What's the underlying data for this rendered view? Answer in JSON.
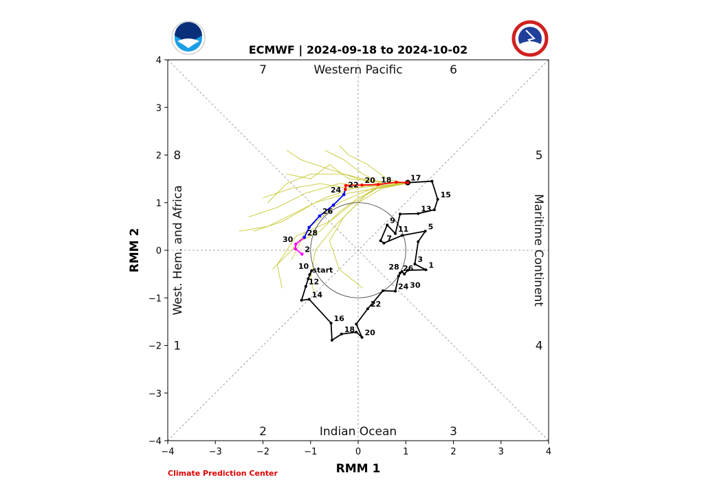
{
  "chart_data": {
    "type": "line",
    "title": "ECMWF | 2024-09-18 to 2024-10-02",
    "xlabel": "RMM 1",
    "ylabel": "RMM 2",
    "xlim": [
      -4,
      4
    ],
    "ylim": [
      -4,
      4
    ],
    "xticks": [
      "−4",
      "−3",
      "−2",
      "−1",
      "0",
      "1",
      "2",
      "3",
      "4"
    ],
    "yticks": [
      "−4",
      "−3",
      "−2",
      "−1",
      "0",
      "1",
      "2",
      "3",
      "4"
    ],
    "phases": [
      {
        "label": "1",
        "x": -3.8,
        "y": -2
      },
      {
        "label": "2",
        "x": -2,
        "y": -3.8
      },
      {
        "label": "3",
        "x": 2,
        "y": -3.8
      },
      {
        "label": "4",
        "x": 3.8,
        "y": -2
      },
      {
        "label": "5",
        "x": 3.8,
        "y": 2
      },
      {
        "label": "6",
        "x": 2,
        "y": 3.8
      },
      {
        "label": "7",
        "x": -2,
        "y": 3.8
      },
      {
        "label": "8",
        "x": -3.8,
        "y": 2
      }
    ],
    "regions": {
      "top": "Western Pacific",
      "bottom": "Indian Ocean",
      "left": "West. Hem. and Africa",
      "right": "Maritime Continent"
    },
    "unit_circle_radius": 1,
    "colors": {
      "observed": "#000000",
      "forecast_week1": "#ff0000",
      "forecast_week2": "#0000ff",
      "forecast_week3": "#ff00ff",
      "ensemble": "#c8c832"
    },
    "observed": [
      {
        "x": -1.02,
        "y": -0.51,
        "label": "start"
      },
      {
        "x": -0.98,
        "y": -0.43,
        "label": "10"
      },
      {
        "x": -1.05,
        "y": -0.6,
        "label": ""
      },
      {
        "x": -1.1,
        "y": -0.76,
        "label": "12"
      },
      {
        "x": -1.19,
        "y": -1.05,
        "label": ""
      },
      {
        "x": -1.03,
        "y": -1.03,
        "label": "14"
      },
      {
        "x": -0.57,
        "y": -1.53,
        "label": "16"
      },
      {
        "x": -0.55,
        "y": -1.89,
        "label": ""
      },
      {
        "x": -0.35,
        "y": -1.76,
        "label": "18"
      },
      {
        "x": -0.04,
        "y": -1.72,
        "label": ""
      },
      {
        "x": 0.08,
        "y": -1.83,
        "label": "20"
      },
      {
        "x": -0.04,
        "y": -1.55,
        "label": ""
      },
      {
        "x": 0.2,
        "y": -1.23,
        "label": "22"
      },
      {
        "x": 0.52,
        "y": -0.85,
        "label": ""
      },
      {
        "x": 0.78,
        "y": -0.86,
        "label": "24"
      },
      {
        "x": 0.85,
        "y": -0.54,
        "label": ""
      },
      {
        "x": 0.88,
        "y": -0.48,
        "label": "26"
      },
      {
        "x": 0.92,
        "y": -0.45,
        "label": "28"
      },
      {
        "x": 0.97,
        "y": -0.5,
        "label": "30"
      },
      {
        "x": 1.04,
        "y": -0.42,
        "label": ""
      },
      {
        "x": 1.42,
        "y": -0.41,
        "label": "1"
      },
      {
        "x": 1.19,
        "y": -0.29,
        "label": "3"
      },
      {
        "x": 1.26,
        "y": 0.18,
        "label": ""
      },
      {
        "x": 1.41,
        "y": 0.4,
        "label": "5"
      },
      {
        "x": 0.92,
        "y": 0.31,
        "label": ""
      },
      {
        "x": 0.54,
        "y": 0.15,
        "label": "7"
      },
      {
        "x": 0.47,
        "y": 0.2,
        "label": ""
      },
      {
        "x": 0.61,
        "y": 0.53,
        "label": "9"
      },
      {
        "x": 0.78,
        "y": 0.35,
        "label": "11"
      },
      {
        "x": 0.88,
        "y": 0.76,
        "label": ""
      },
      {
        "x": 1.26,
        "y": 0.77,
        "label": "13"
      },
      {
        "x": 1.6,
        "y": 0.85,
        "label": ""
      },
      {
        "x": 1.67,
        "y": 1.07,
        "label": "15"
      },
      {
        "x": 1.55,
        "y": 1.45,
        "label": ""
      },
      {
        "x": 1.04,
        "y": 1.42,
        "label": "17"
      }
    ],
    "forecast": [
      {
        "x": 1.04,
        "y": 1.42,
        "label": "",
        "week": 1
      },
      {
        "x": 0.8,
        "y": 1.43,
        "label": "",
        "week": 1
      },
      {
        "x": 0.42,
        "y": 1.38,
        "label": "18",
        "week": 1
      },
      {
        "x": 0.08,
        "y": 1.37,
        "label": "20",
        "week": 1
      },
      {
        "x": -0.26,
        "y": 1.36,
        "label": "",
        "week": 1
      },
      {
        "x": -0.27,
        "y": 1.28,
        "label": "22",
        "week": 1
      },
      {
        "x": -0.3,
        "y": 1.17,
        "label": "24",
        "week": 2
      },
      {
        "x": -0.52,
        "y": 0.95,
        "label": "",
        "week": 2
      },
      {
        "x": -0.81,
        "y": 0.72,
        "label": "26",
        "week": 2
      },
      {
        "x": -1.03,
        "y": 0.48,
        "label": "",
        "week": 2
      },
      {
        "x": -1.13,
        "y": 0.27,
        "label": "28",
        "week": 2
      },
      {
        "x": -1.31,
        "y": 0.13,
        "label": "30",
        "week": 3
      },
      {
        "x": -1.32,
        "y": 0.03,
        "label": "",
        "week": 3
      },
      {
        "x": -1.18,
        "y": -0.08,
        "label": "2",
        "week": 3
      }
    ],
    "ensemble": [
      [
        [
          1.0,
          1.4
        ],
        [
          0.4,
          1.4
        ],
        [
          0,
          1.5
        ],
        [
          -0.6,
          1.7
        ],
        [
          -1.2,
          1.9
        ],
        [
          -1.5,
          2.1
        ]
      ],
      [
        [
          1.0,
          1.4
        ],
        [
          0.4,
          1.3
        ],
        [
          -0.2,
          1.2
        ],
        [
          -0.9,
          1.0
        ],
        [
          -1.6,
          0.6
        ],
        [
          -2.2,
          0.4
        ]
      ],
      [
        [
          1.0,
          1.4
        ],
        [
          0.5,
          1.4
        ],
        [
          0.1,
          1.6
        ],
        [
          -0.3,
          1.9
        ],
        [
          -0.7,
          2.1
        ]
      ],
      [
        [
          1.0,
          1.4
        ],
        [
          0.3,
          1.3
        ],
        [
          -0.4,
          1.0
        ],
        [
          -1.0,
          0.5
        ],
        [
          -1.4,
          0.0
        ],
        [
          -1.8,
          -0.4
        ]
      ],
      [
        [
          1.0,
          1.4
        ],
        [
          0.4,
          1.35
        ],
        [
          -0.2,
          1.3
        ],
        [
          -0.8,
          1.4
        ],
        [
          -1.4,
          1.3
        ],
        [
          -2.0,
          1.1
        ]
      ],
      [
        [
          1.0,
          1.4
        ],
        [
          0.5,
          1.3
        ],
        [
          0.0,
          1.0
        ],
        [
          -0.5,
          0.5
        ],
        [
          -0.9,
          0.0
        ],
        [
          -1.0,
          -0.6
        ],
        [
          -0.9,
          -1.0
        ]
      ],
      [
        [
          1.0,
          1.4
        ],
        [
          0.3,
          1.45
        ],
        [
          -0.3,
          1.6
        ],
        [
          -1.0,
          1.6
        ],
        [
          -1.5,
          1.4
        ],
        [
          -1.9,
          1.0
        ]
      ],
      [
        [
          1.0,
          1.4
        ],
        [
          0.5,
          1.4
        ],
        [
          0.2,
          1.2
        ],
        [
          -0.3,
          0.7
        ],
        [
          -0.6,
          0.2
        ],
        [
          -0.4,
          -0.4
        ],
        [
          0.1,
          -0.8
        ]
      ],
      [
        [
          1.0,
          1.4
        ],
        [
          0.4,
          1.4
        ],
        [
          -0.1,
          1.3
        ],
        [
          -0.7,
          1.1
        ],
        [
          -1.3,
          0.8
        ],
        [
          -1.9,
          0.5
        ],
        [
          -2.5,
          0.4
        ]
      ],
      [
        [
          1.0,
          1.4
        ],
        [
          0.6,
          1.5
        ],
        [
          0.2,
          1.8
        ],
        [
          -0.2,
          2.0
        ],
        [
          -0.4,
          2.2
        ]
      ],
      [
        [
          1.0,
          1.4
        ],
        [
          0.4,
          1.3
        ],
        [
          -0.1,
          1.0
        ],
        [
          -0.6,
          0.6
        ],
        [
          -1.3,
          0.3
        ],
        [
          -1.7,
          -0.3
        ],
        [
          -1.6,
          -0.8
        ]
      ],
      [
        [
          1.0,
          1.4
        ],
        [
          0.3,
          1.35
        ],
        [
          -0.4,
          1.4
        ],
        [
          -1.1,
          1.2
        ],
        [
          -1.7,
          0.9
        ],
        [
          -2.3,
          0.7
        ]
      ],
      [
        [
          1.0,
          1.4
        ],
        [
          0.5,
          1.35
        ],
        [
          0.0,
          1.1
        ],
        [
          -0.4,
          0.8
        ],
        [
          -0.8,
          0.4
        ],
        [
          -1.2,
          0.2
        ],
        [
          -1.4,
          -0.2
        ]
      ],
      [
        [
          1.0,
          1.4
        ],
        [
          0.4,
          1.45
        ],
        [
          -0.2,
          1.5
        ],
        [
          -0.6,
          1.8
        ],
        [
          -1.0,
          1.5
        ],
        [
          -1.5,
          1.6
        ]
      ]
    ]
  },
  "footer": {
    "credit": "Climate Prediction Center"
  },
  "logos": {
    "left": "NOAA",
    "right": "NATIONAL WEATHER SERVICE"
  }
}
